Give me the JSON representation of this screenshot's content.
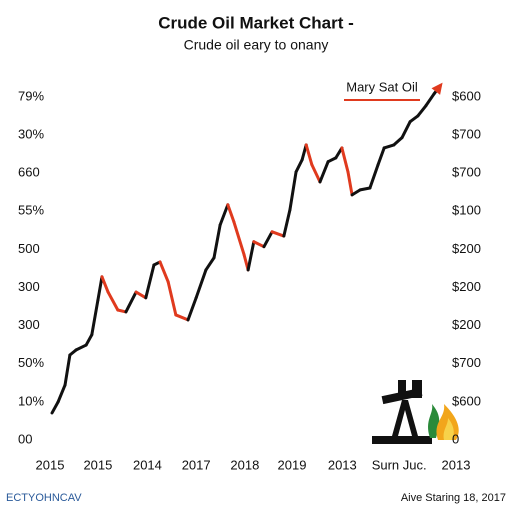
{
  "chart_data": {
    "type": "line",
    "title": "Crude Oil Market Chart -",
    "subtitle": "Crude oil eary to onany",
    "annotation": "Mary Sat Oil",
    "footer_left": "ECTYOHNCAV",
    "footer_right": "Aive Staring 18, 2017",
    "xlim": [
      0,
      100
    ],
    "xticks": [
      {
        "value": 0,
        "label": "2015"
      },
      {
        "value": 11.8,
        "label": "2015"
      },
      {
        "value": 24,
        "label": "2014"
      },
      {
        "value": 36,
        "label": "2017"
      },
      {
        "value": 48,
        "label": "2018"
      },
      {
        "value": 59.6,
        "label": "2019"
      },
      {
        "value": 72,
        "label": "2013"
      },
      {
        "value": 86,
        "label": "Surn Juc."
      },
      {
        "value": 100,
        "label": "2013"
      }
    ],
    "ylim": [
      0,
      9.6
    ],
    "yticks": [
      {
        "value": 0,
        "label": "00"
      },
      {
        "value": 1,
        "label": "10%"
      },
      {
        "value": 2,
        "label": "50%"
      },
      {
        "value": 3,
        "label": "300"
      },
      {
        "value": 4,
        "label": "300"
      },
      {
        "value": 5,
        "label": "500"
      },
      {
        "value": 6,
        "label": "55%"
      },
      {
        "value": 7,
        "label": "660"
      },
      {
        "value": 8,
        "label": "30%"
      },
      {
        "value": 9,
        "label": "79%"
      }
    ],
    "y2lim": [
      0,
      9.6
    ],
    "y2ticks": [
      {
        "value": 0,
        "label": "0"
      },
      {
        "value": 1,
        "label": "$600"
      },
      {
        "value": 2,
        "label": "$700"
      },
      {
        "value": 3,
        "label": "$200"
      },
      {
        "value": 4,
        "label": "$200"
      },
      {
        "value": 5,
        "label": "$200"
      },
      {
        "value": 6,
        "label": "$100"
      },
      {
        "value": 7,
        "label": "$700"
      },
      {
        "value": 8,
        "label": "$700"
      },
      {
        "value": 9,
        "label": "$600"
      }
    ],
    "colors": {
      "up": "#111111",
      "down": "#e03a1e"
    },
    "x": [
      0.5,
      2.0,
      3.7,
      4.9,
      6.4,
      8.9,
      10.3,
      11.8,
      12.8,
      14.3,
      16.7,
      18.7,
      21.2,
      23.6,
      25.6,
      27.1,
      29.1,
      31.0,
      34.0,
      36.0,
      38.4,
      40.4,
      41.9,
      43.8,
      45.3,
      47.8,
      48.8,
      50.2,
      52.7,
      54.7,
      57.6,
      59.1,
      60.6,
      62.1,
      63.1,
      64.5,
      66.5,
      68.5,
      70.4,
      71.9,
      73.4,
      74.4,
      76.4,
      78.8,
      80.8,
      82.3,
      84.7,
      86.7,
      88.7,
      90.6,
      92.6,
      94.6,
      96.1
    ],
    "values": [
      0.71,
      1.0,
      1.44,
      2.23,
      2.36,
      2.49,
      2.76,
      3.67,
      4.28,
      3.88,
      3.41,
      3.36,
      3.88,
      3.73,
      4.59,
      4.67,
      4.15,
      3.28,
      3.15,
      3.73,
      4.46,
      4.78,
      5.64,
      6.17,
      5.72,
      4.86,
      4.46,
      5.2,
      5.07,
      5.46,
      5.35,
      6.04,
      7.03,
      7.35,
      7.74,
      7.22,
      6.77,
      7.3,
      7.4,
      7.66,
      7.03,
      6.43,
      6.56,
      6.61,
      7.22,
      7.66,
      7.74,
      7.93,
      8.35,
      8.5,
      8.77,
      9.08,
      9.29
    ]
  }
}
